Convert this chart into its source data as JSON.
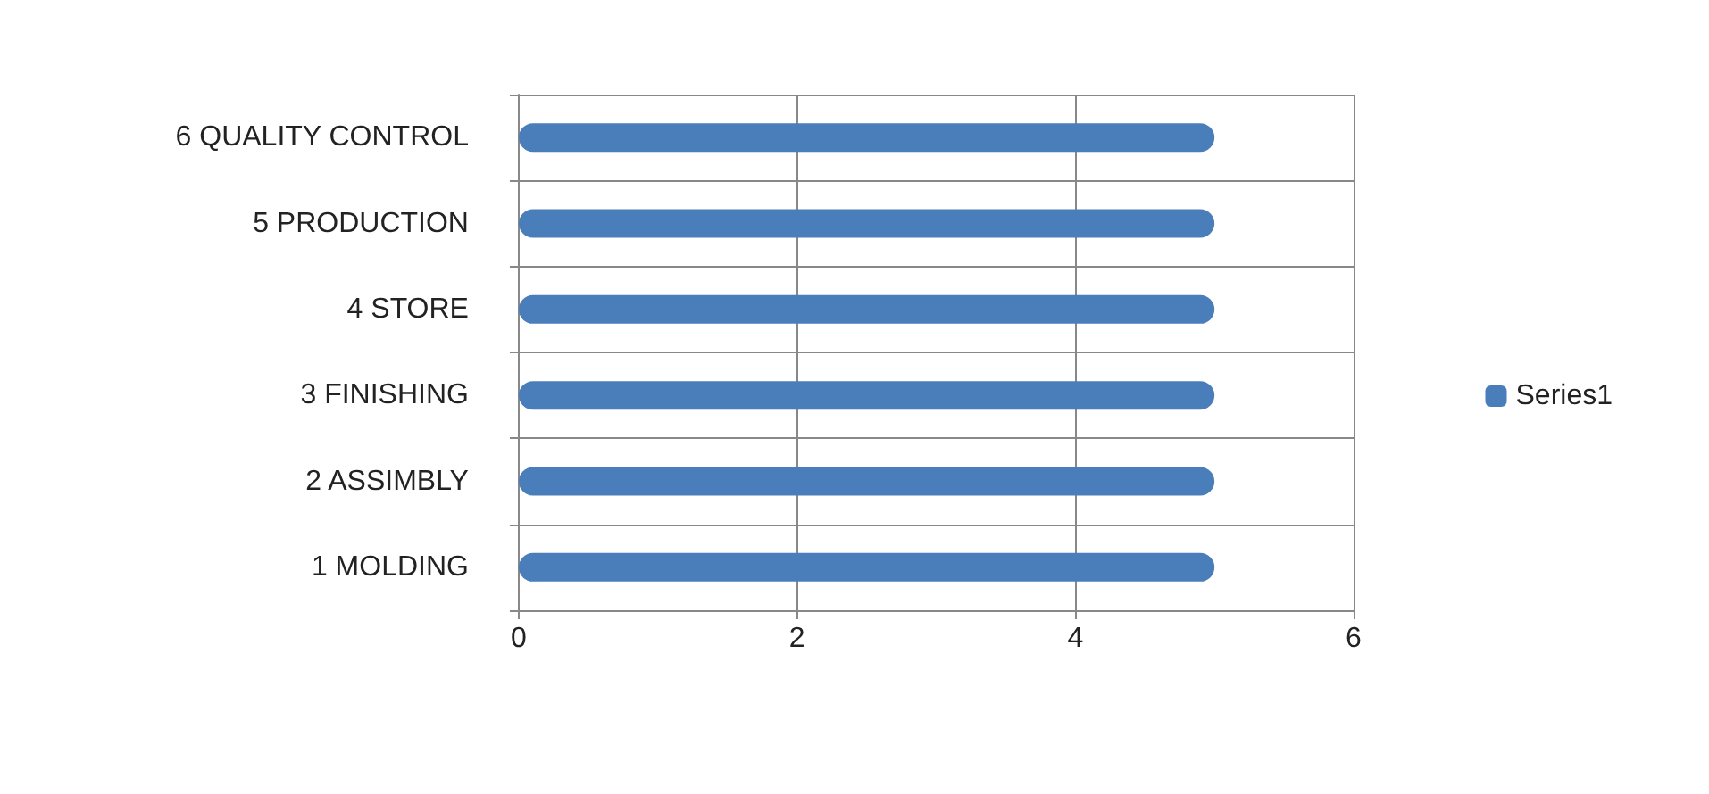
{
  "chart_data": {
    "type": "bar",
    "orientation": "horizontal",
    "categories": [
      "6 QUALITY CONTROL",
      "5 PRODUCTION",
      "4 STORE",
      "3 FINISHING",
      "2 ASSIMBLY",
      "1 MOLDING"
    ],
    "series": [
      {
        "name": "Series1",
        "color": "#4a7ebb",
        "values": [
          5,
          5,
          5,
          5,
          5,
          5
        ]
      }
    ],
    "xlim": [
      0,
      6
    ],
    "xticks": [
      0,
      2,
      4,
      6
    ],
    "grid": "x",
    "legend": "right"
  }
}
